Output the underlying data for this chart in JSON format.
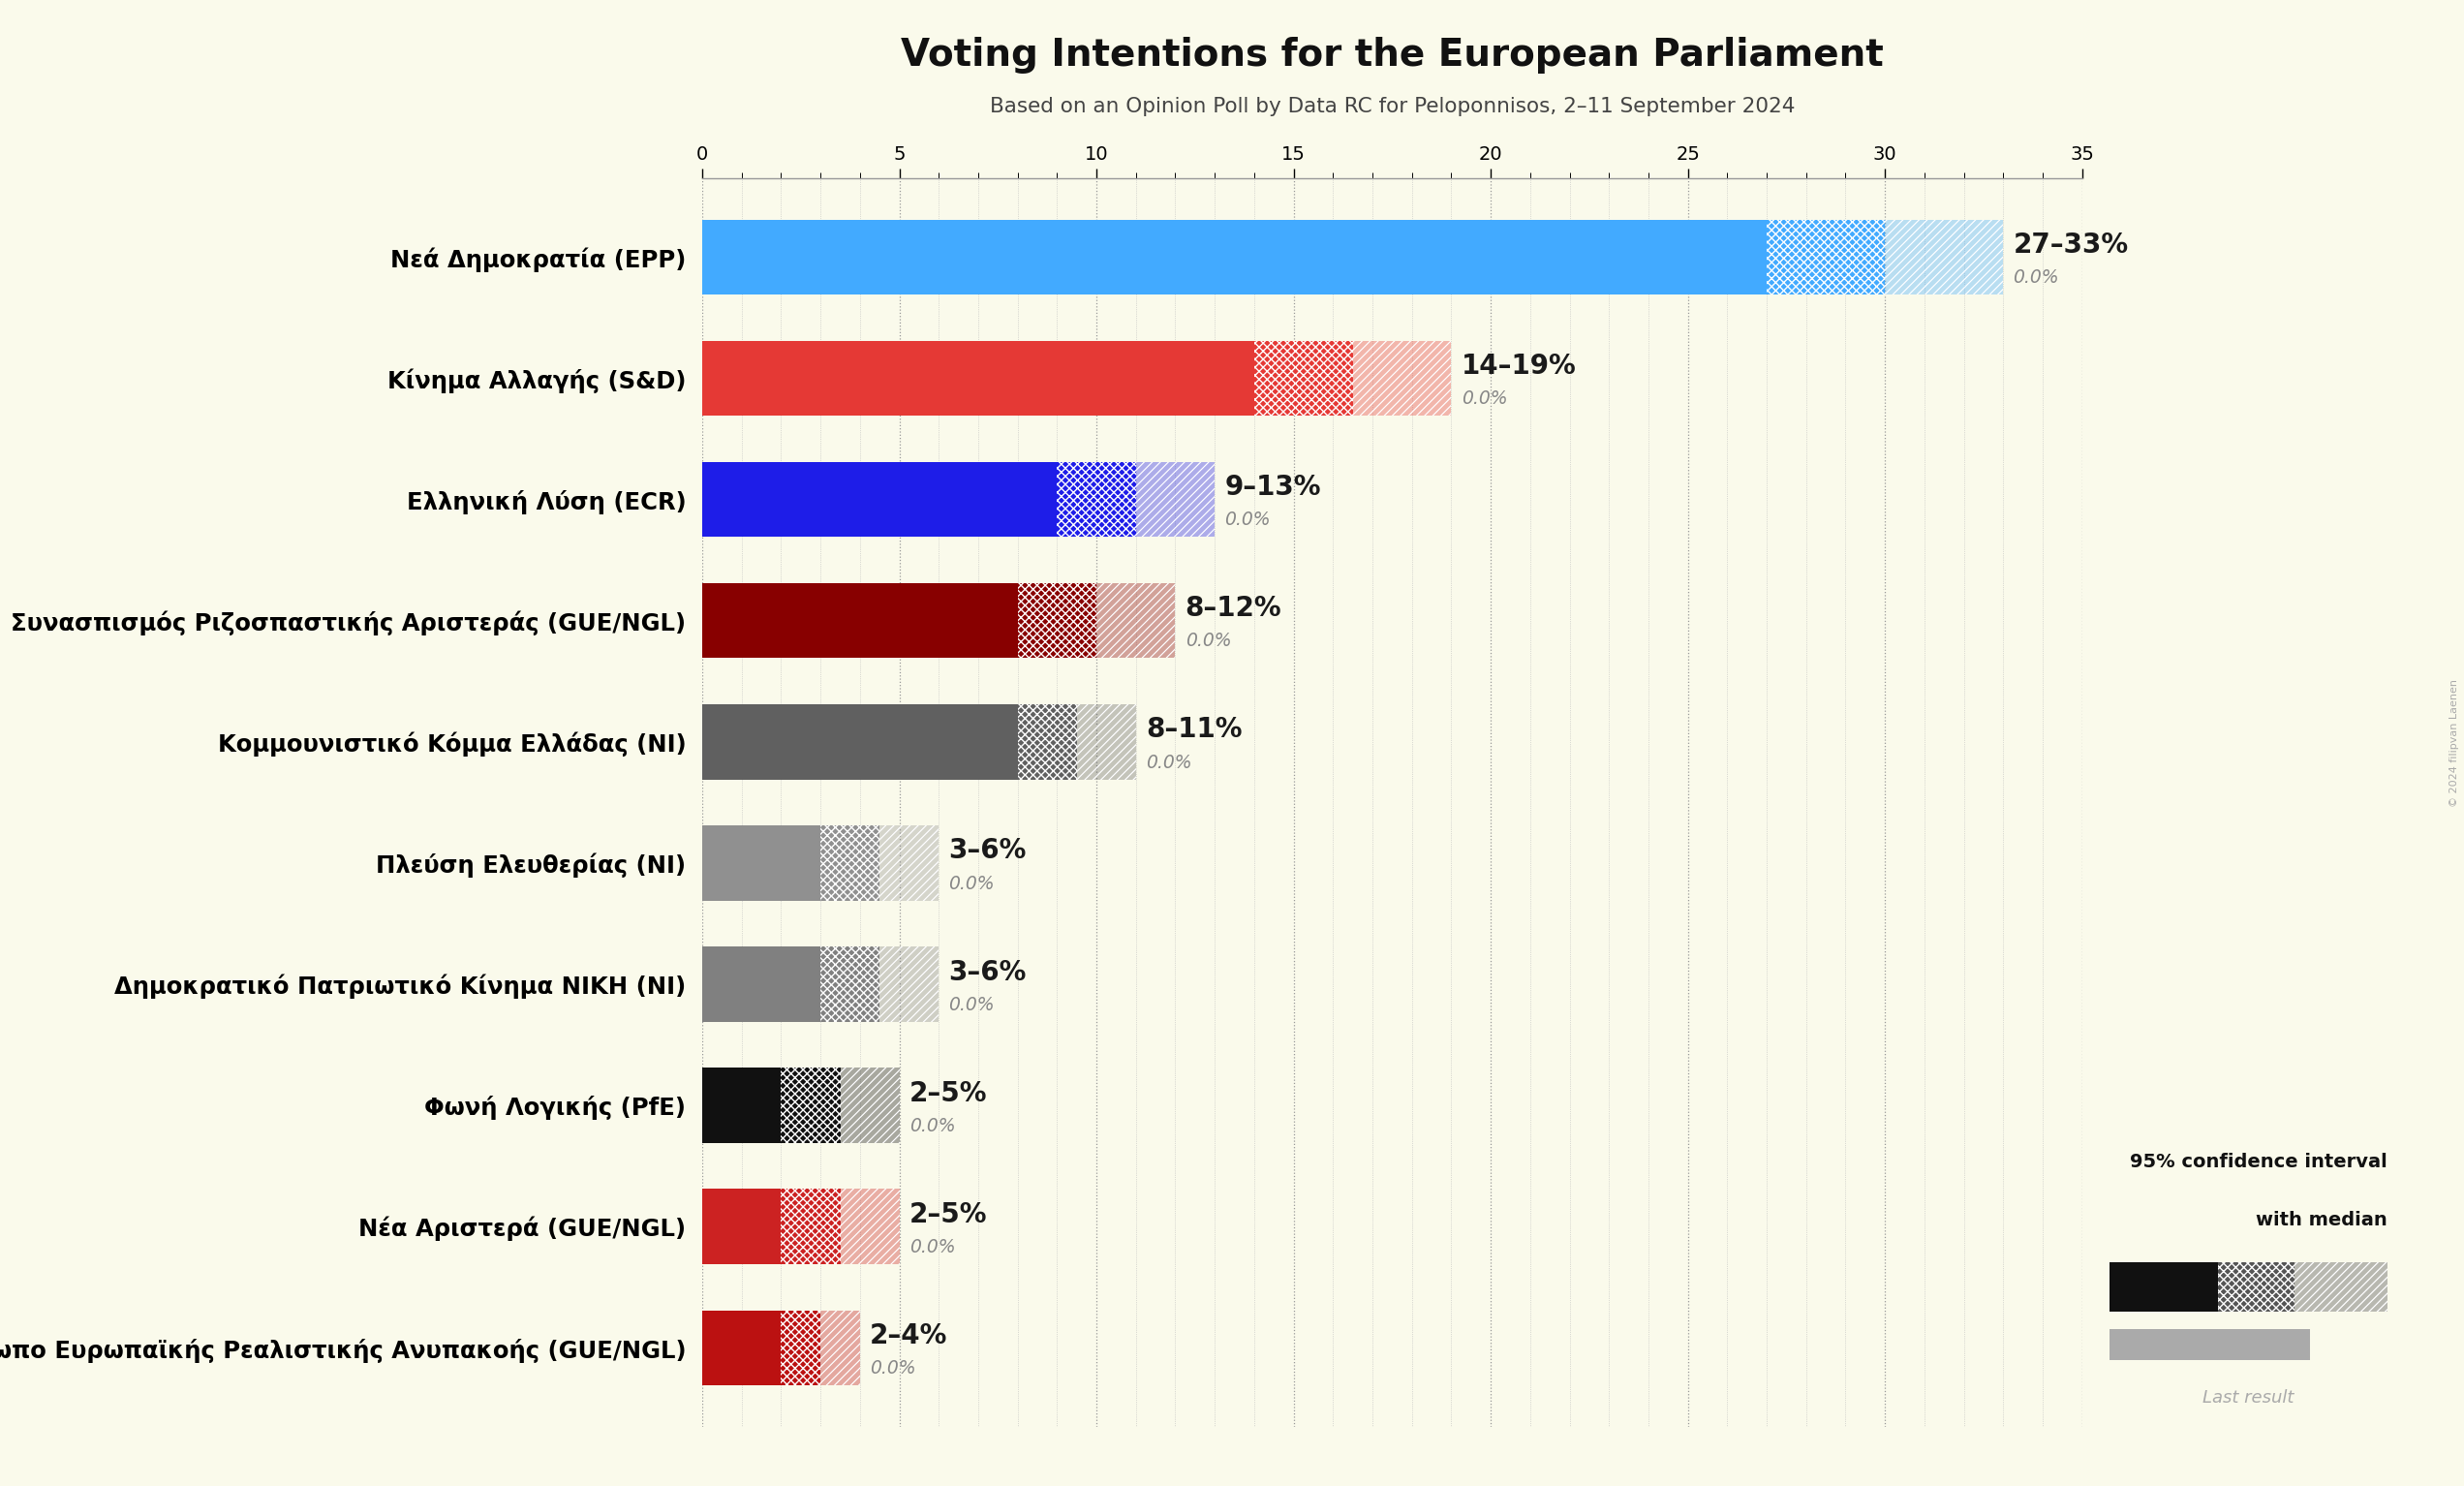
{
  "title": "Voting Intentions for the European Parliament",
  "subtitle": "Based on an Opinion Poll by Data RC for Peloponnisos, 2–11 September 2024",
  "background_color": "#fafaeb",
  "parties": [
    {
      "name": "Nεά Δημοκρατία (EPP)",
      "median": 27,
      "low": 27,
      "high": 33,
      "color": "#42aaff",
      "last": 0.0
    },
    {
      "name": "Κίνημα Αλλαγής (S&D)",
      "median": 14,
      "low": 14,
      "high": 19,
      "color": "#e53935",
      "last": 0.0
    },
    {
      "name": "Ελληνική Λύση (ECR)",
      "median": 9,
      "low": 9,
      "high": 13,
      "color": "#1e1de8",
      "last": 0.0
    },
    {
      "name": "Συνασπισμός Ριζοσπαστικής Αριστεράς (GUE/NGL)",
      "median": 8,
      "low": 8,
      "high": 12,
      "color": "#880000",
      "last": 0.0
    },
    {
      "name": "Κομμουνιστικό Κόμμα Ελλάδας (NI)",
      "median": 8,
      "low": 8,
      "high": 11,
      "color": "#606060",
      "last": 0.0
    },
    {
      "name": "Πλεύση Ελευθερίας (NI)",
      "median": 3,
      "low": 3,
      "high": 6,
      "color": "#909090",
      "last": 0.0
    },
    {
      "name": "Δημοκρατικό Πατριωτικό Κίνημα ΝΙΚΗ (NI)",
      "median": 3,
      "low": 3,
      "high": 6,
      "color": "#808080",
      "last": 0.0
    },
    {
      "name": "Φωνή Λογικής (PfE)",
      "median": 2,
      "low": 2,
      "high": 5,
      "color": "#111111",
      "last": 0.0
    },
    {
      "name": "Νέα Αριστερά (GUE/NGL)",
      "median": 2,
      "low": 2,
      "high": 5,
      "color": "#cc2222",
      "last": 0.0
    },
    {
      "name": "Μέτωπο Ευρωπαϊκής Ρεαλιστικής Ανυπακοής (GUE/NGL)",
      "median": 2,
      "low": 2,
      "high": 4,
      "color": "#bb1111",
      "last": 0.0
    }
  ],
  "xlim_max": 35,
  "xtick_major": 5,
  "legend_text1": "95% confidence interval",
  "legend_text2": "with median",
  "legend_text3": "Last result",
  "copyright": "© 2024 filipvan Laenen"
}
